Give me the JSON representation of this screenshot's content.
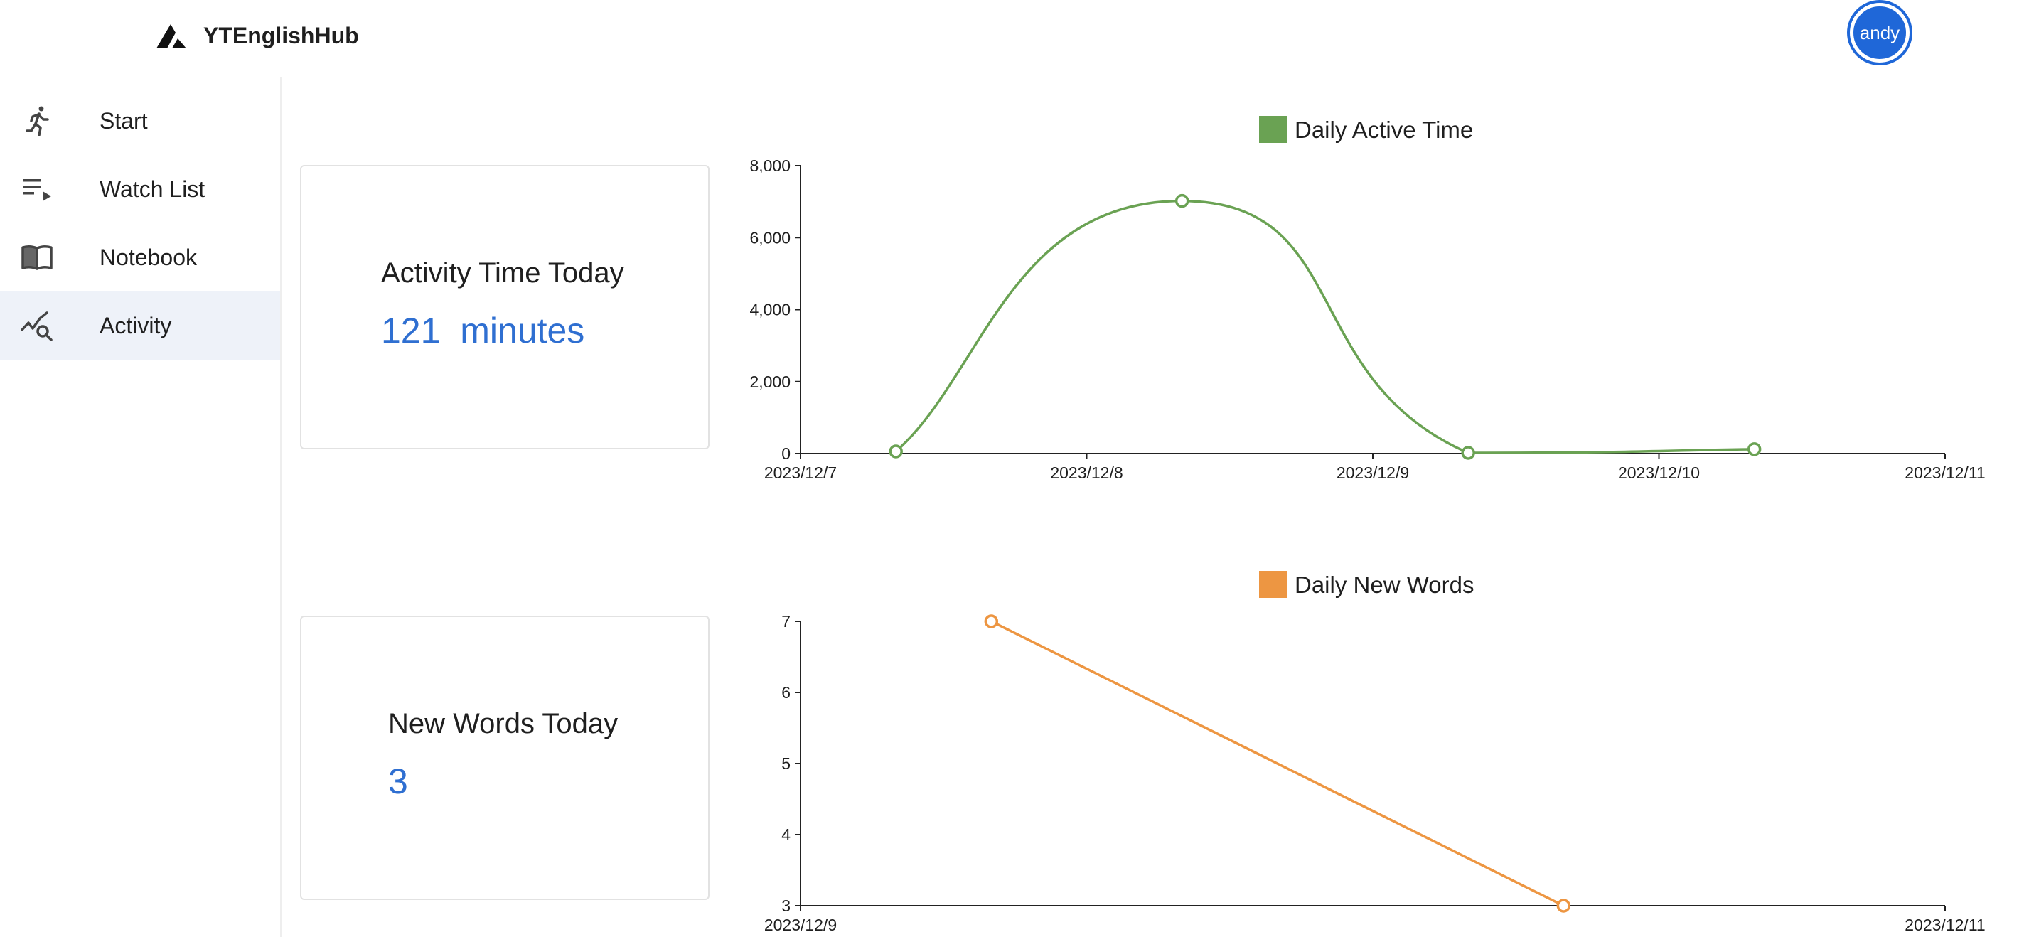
{
  "app": {
    "name": "YTEnglishHub",
    "user": "andy"
  },
  "nav": {
    "items": [
      {
        "label": "Start",
        "icon": "running-person-icon",
        "active": false
      },
      {
        "label": "Watch List",
        "icon": "playlist-play-icon",
        "active": false
      },
      {
        "label": "Notebook",
        "icon": "open-book-icon",
        "active": false
      },
      {
        "label": "Activity",
        "icon": "chart-search-icon",
        "active": true
      }
    ]
  },
  "stats": {
    "activity": {
      "title": "Activity Time Today",
      "value": "121",
      "unit": "minutes"
    },
    "words": {
      "title": "New Words Today",
      "value": "3"
    }
  },
  "colors": {
    "accent": "#2f6fd1",
    "active_time": "#6aa253",
    "new_words": "#ed9642",
    "avatar": "#1f67d8",
    "active_nav_bg": "#eef2f9"
  },
  "chart_data": [
    {
      "type": "line",
      "smooth": true,
      "legend": "Daily Active Time",
      "legend_position": "top",
      "x_ticks": [
        "2023/12/7",
        "2023/12/8",
        "2023/12/9",
        "2023/12/10",
        "2023/12/11"
      ],
      "x_range": [
        "2023/12/7",
        "2023/12/11"
      ],
      "y_ticks": [
        "0",
        "2,000",
        "4,000",
        "6,000",
        "8,000"
      ],
      "ylim": [
        0,
        8000
      ],
      "series": [
        {
          "name": "Daily Active Time",
          "points": [
            {
              "x": "2023/12/7 08:00",
              "y": 60
            },
            {
              "x": "2023/12/8 08:00",
              "y": 7020
            },
            {
              "x": "2023/12/9 08:00",
              "y": 20
            },
            {
              "x": "2023/12/10 08:00",
              "y": 121
            }
          ]
        }
      ],
      "grid": false
    },
    {
      "type": "line",
      "smooth": false,
      "legend": "Daily New Words",
      "legend_position": "top",
      "x_ticks": [
        "2023/12/9",
        "2023/12/11"
      ],
      "x_range": [
        "2023/12/9",
        "2023/12/11"
      ],
      "y_ticks": [
        "3",
        "4",
        "5",
        "6",
        "7"
      ],
      "ylim": [
        3,
        7
      ],
      "series": [
        {
          "name": "Daily New Words",
          "points": [
            {
              "x": "2023/12/9 08:00",
              "y": 7
            },
            {
              "x": "2023/12/10 08:00",
              "y": 3
            }
          ]
        }
      ],
      "grid": false
    }
  ]
}
